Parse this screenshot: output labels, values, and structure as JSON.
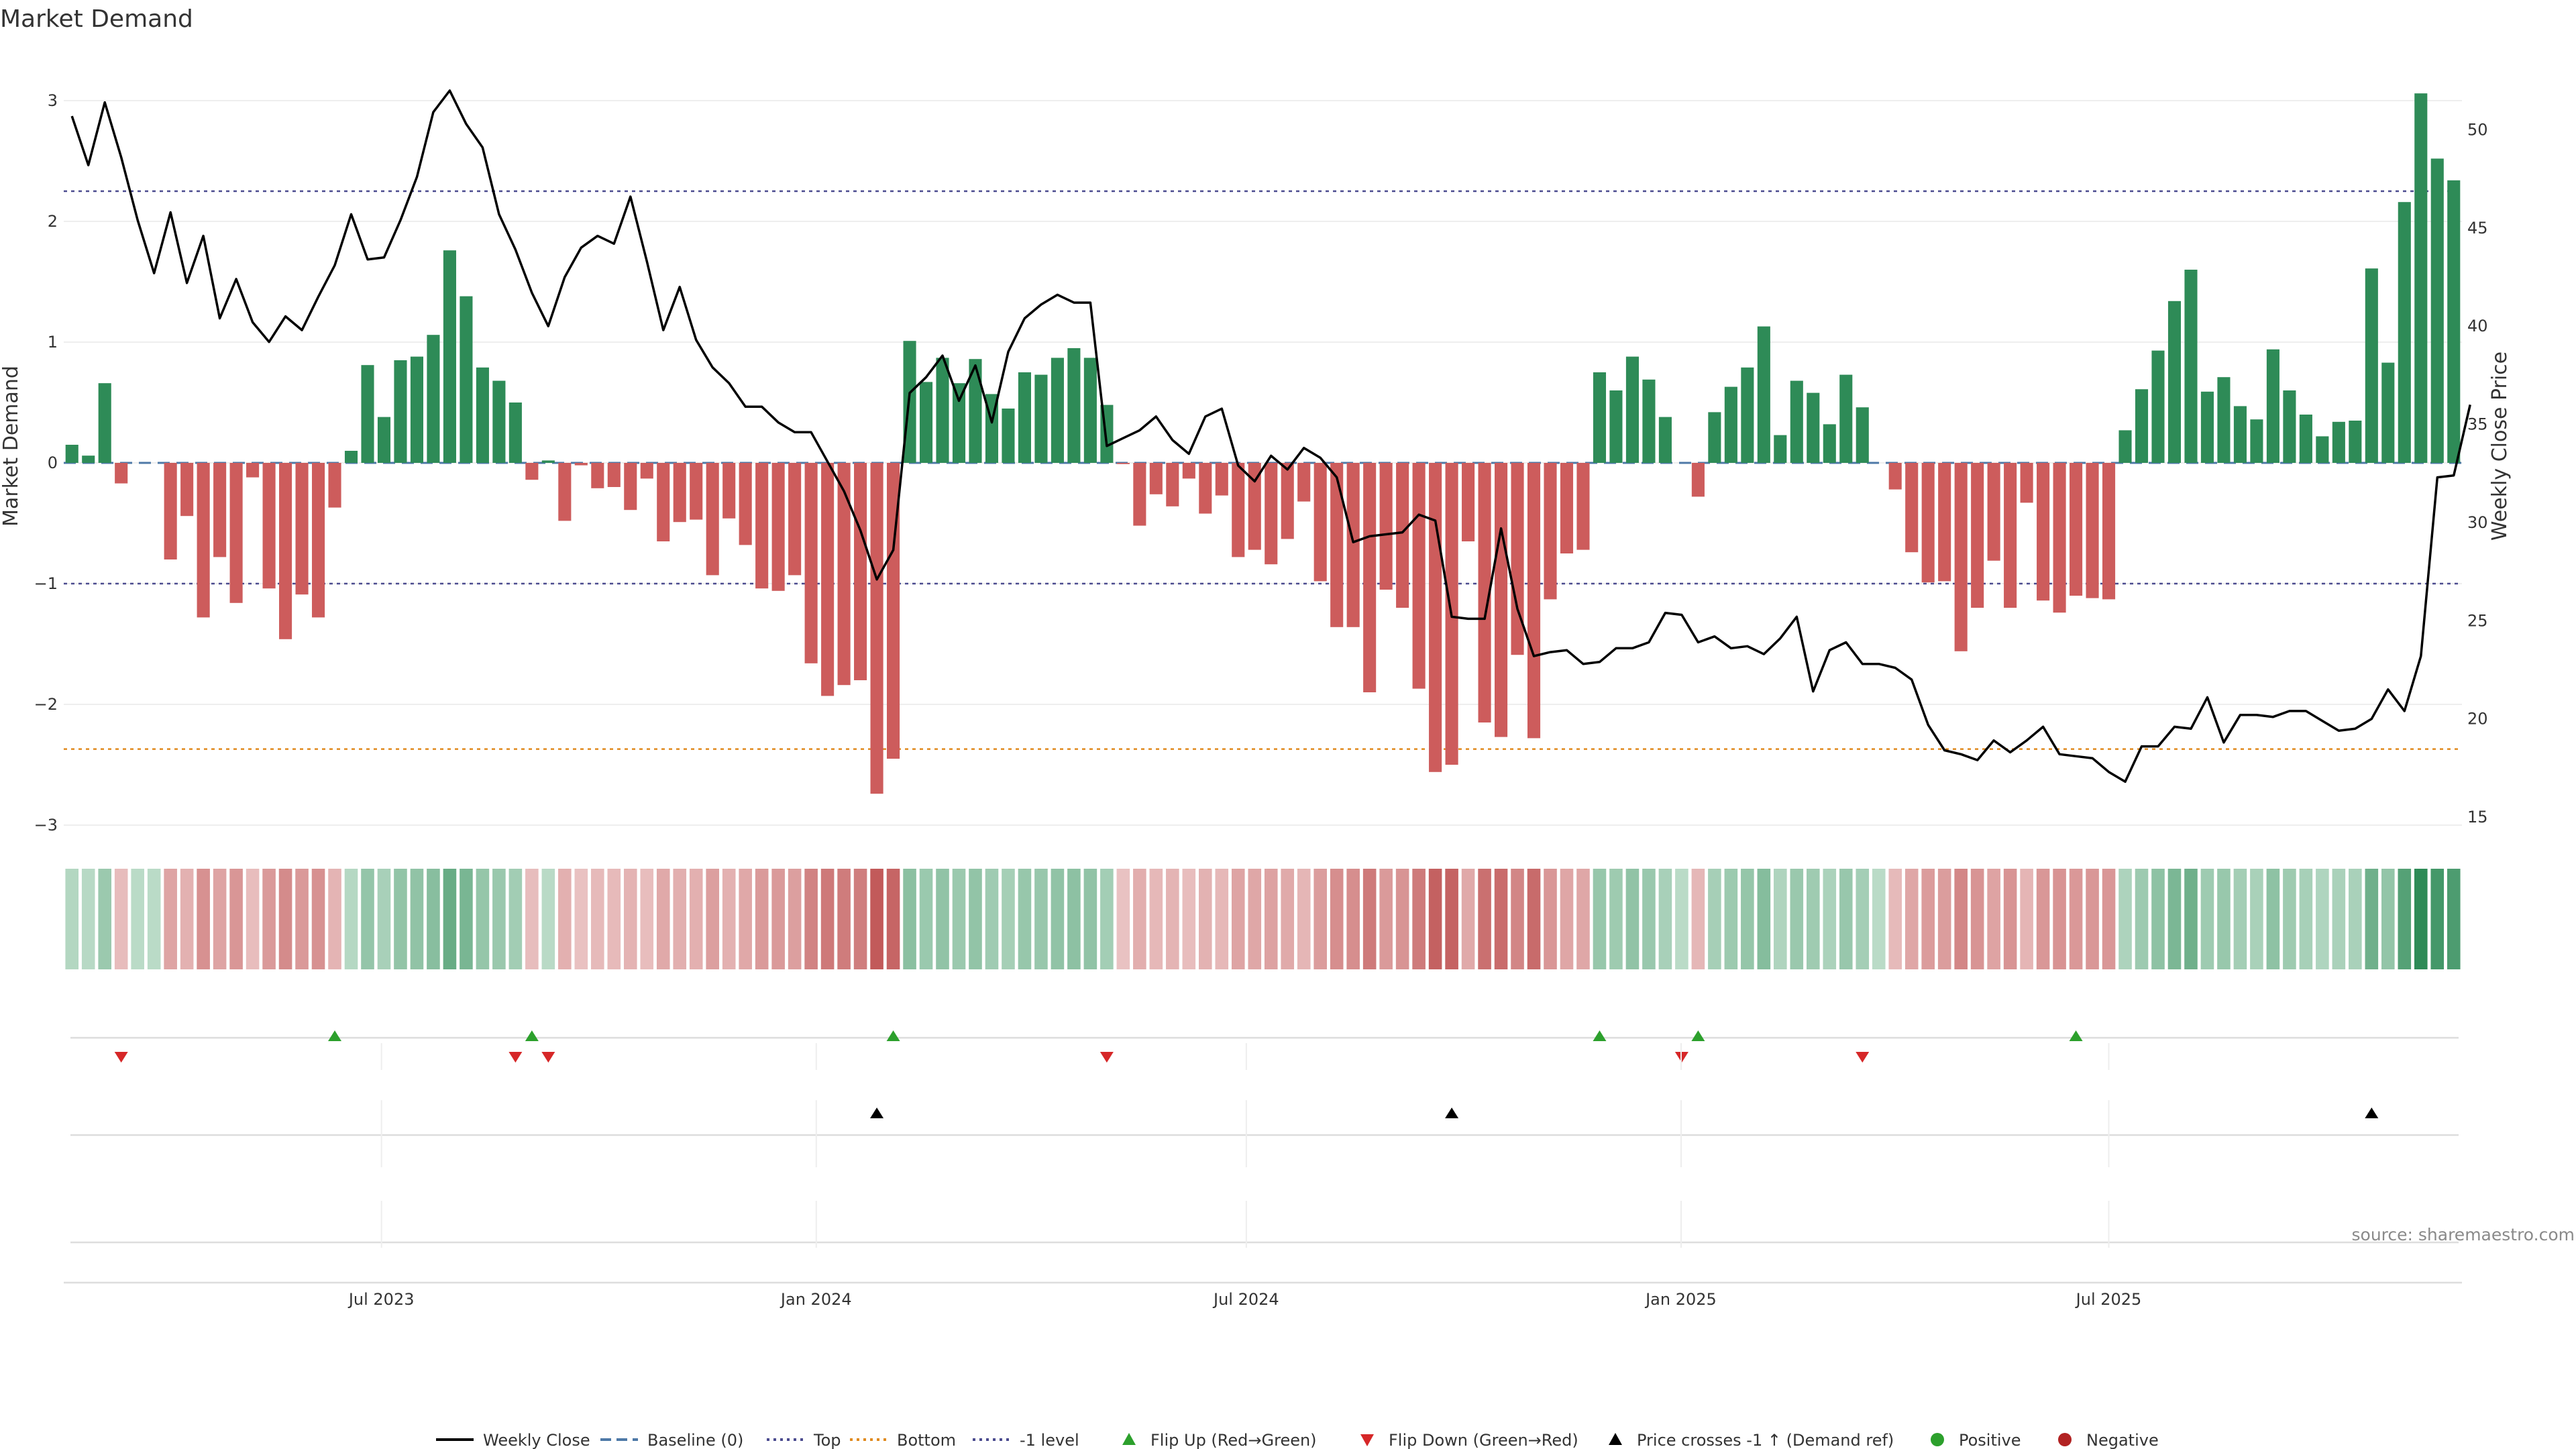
{
  "chart_data": {
    "type": "bar",
    "title": "Market Demand",
    "ylabel": "Market Demand",
    "y2label": "Weekly Close Price",
    "ylim": [
      -3,
      3
    ],
    "y2lim": [
      15,
      52
    ],
    "yticks": [
      "3",
      "2",
      "1",
      "0",
      "−1",
      "−2",
      "−3"
    ],
    "y2ticks": [
      "50",
      "45",
      "40",
      "35",
      "30",
      "25",
      "20",
      "15"
    ],
    "xticks": [
      "Jul 2023",
      "Jan 2024",
      "Jul 2024",
      "Jan 2025",
      "Jul 2025"
    ],
    "x_range": [
      "2023-02-20",
      "2025-11-24"
    ],
    "reference_lines": {
      "top": 2.25,
      "bottom": -2.37,
      "minus_one_level": -1,
      "baseline": 0
    },
    "grid": true,
    "legend_position": "bottom",
    "source": "source: sharemaestro.com",
    "bars": [
      0.15,
      0.06,
      0.66,
      -0.17,
      0,
      0,
      -0.8,
      -0.44,
      -1.28,
      -0.78,
      -1.16,
      -0.12,
      -1.04,
      -1.46,
      -1.09,
      -1.28,
      -0.37,
      0.1,
      0.81,
      0.38,
      0.85,
      0.88,
      1.06,
      1.76,
      1.38,
      0.79,
      0.68,
      0.5,
      -0.14,
      0.02,
      -0.48,
      -0.02,
      -0.21,
      -0.2,
      -0.39,
      -0.13,
      -0.65,
      -0.49,
      -0.47,
      -0.93,
      -0.46,
      -0.68,
      -1.04,
      -1.06,
      -0.93,
      -1.66,
      -1.93,
      -1.84,
      -1.8,
      -2.74,
      -2.45,
      1.01,
      0.67,
      0.87,
      0.66,
      0.86,
      0.57,
      0.45,
      0.75,
      0.73,
      0.87,
      0.95,
      0.87,
      0.48,
      -0.01,
      -0.52,
      -0.26,
      -0.36,
      -0.13,
      -0.42,
      -0.27,
      -0.78,
      -0.72,
      -0.84,
      -0.63,
      -0.32,
      -0.98,
      -1.36,
      -1.36,
      -1.9,
      -1.05,
      -1.2,
      -1.87,
      -2.56,
      -2.5,
      -0.65,
      -2.15,
      -2.27,
      -1.59,
      -2.28,
      -1.13,
      -0.75,
      -0.72,
      0.75,
      0.6,
      0.88,
      0.69,
      0.38,
      0,
      -0.28,
      0.42,
      0.63,
      0.79,
      1.13,
      0.23,
      0.68,
      0.58,
      0.32,
      0.73,
      0.46,
      0,
      -0.22,
      -0.74,
      -0.99,
      -0.98,
      -1.56,
      -1.2,
      -0.81,
      -1.2,
      -0.33,
      -1.14,
      -1.24,
      -1.1,
      -1.12,
      -1.13,
      0.27,
      0.61,
      0.93,
      1.34,
      1.6,
      0.59,
      0.71,
      0.47,
      0.36,
      0.94,
      0.6,
      0.4,
      0.22,
      0.34,
      0.35,
      1.61,
      0.83,
      2.16,
      3.06,
      2.52,
      2.34
    ],
    "series": [
      {
        "name": "Weekly Close",
        "values": [
          50.7,
          48.2,
          51.4,
          48.6,
          45.4,
          42.7,
          45.8,
          42.2,
          44.6,
          40.4,
          42.4,
          40.2,
          39.2,
          40.5,
          39.8,
          41.5,
          43.1,
          45.7,
          43.4,
          43.5,
          45.4,
          47.6,
          50.9,
          52,
          50.3,
          49.1,
          45.7,
          43.9,
          41.7,
          40,
          42.5,
          44,
          44.6,
          44.2,
          46.6,
          43.3,
          39.8,
          42,
          39.3,
          37.9,
          37.1,
          35.9,
          35.9,
          35.1,
          34.6,
          34.6,
          33.1,
          31.6,
          29.6,
          27.1,
          28.6,
          36.6,
          37.4,
          38.5,
          36.2,
          38,
          35.1,
          38.7,
          40.4,
          41.1,
          41.6,
          41.2,
          41.2,
          33.9,
          34.3,
          34.7,
          35.4,
          34.2,
          33.5,
          35.4,
          35.8,
          32.9,
          32.1,
          33.4,
          32.7,
          33.8,
          33.3,
          32.3,
          29,
          29.3,
          29.4,
          29.5,
          30.4,
          30.1,
          25.2,
          25.1,
          25.1,
          29.7,
          25.6,
          23.2,
          23.4,
          23.5,
          22.8,
          22.9,
          23.6,
          23.6,
          23.9,
          25.4,
          25.3,
          23.9,
          24.2,
          23.6,
          23.7,
          23.3,
          24.1,
          25.2,
          21.4,
          23.5,
          23.9,
          22.8,
          22.8,
          22.6,
          22,
          19.7,
          18.4,
          18.2,
          17.9,
          18.9,
          18.3,
          18.9,
          19.6,
          18.2,
          18.1,
          18,
          17.3,
          16.8,
          18.6,
          18.6,
          19.6,
          19.5,
          21.1,
          18.8,
          20.2,
          20.2,
          20.1,
          20.4,
          20.4,
          19.9,
          19.4,
          19.5,
          20,
          21.5,
          20.4,
          23.2,
          32.3,
          32.4,
          36
        ]
      },
      {
        "name": "Baseline (0)",
        "values": [
          0
        ]
      },
      {
        "name": "Top",
        "values": [
          2.25
        ]
      },
      {
        "name": "Bottom",
        "values": [
          -2.37
        ]
      },
      {
        "name": "-1 level",
        "values": [
          -1
        ]
      }
    ],
    "markers": {
      "flip_up_weeks": [
        16,
        28,
        50,
        93,
        99,
        122
      ],
      "flip_down_weeks": [
        3,
        27,
        29,
        63,
        98,
        109
      ],
      "price_cross_weeks": [
        49,
        84,
        140
      ]
    },
    "legend": [
      {
        "label": "Weekly Close",
        "kind": "solid-line",
        "color": "#000000"
      },
      {
        "label": "Baseline (0)",
        "kind": "dashed-line",
        "color": "#4e79a7"
      },
      {
        "label": "Top",
        "kind": "dotted-line",
        "color": "#4b4b8f"
      },
      {
        "label": "Bottom",
        "kind": "dotted-line",
        "color": "#e08a1e"
      },
      {
        "label": "-1 level",
        "kind": "dotted-line",
        "color": "#4b4b8f"
      },
      {
        "label": "Flip Up (Red→Green)",
        "kind": "up-triangle",
        "color": "#2ca02c"
      },
      {
        "label": "Flip Down (Green→Red)",
        "kind": "down-triangle",
        "color": "#d62728"
      },
      {
        "label": "Price crosses -1 ↑ (Demand ref)",
        "kind": "up-triangle",
        "color": "#000000"
      },
      {
        "label": "Positive",
        "kind": "dot",
        "color": "#2ca02c"
      },
      {
        "label": "Negative",
        "kind": "dot",
        "color": "#b22222"
      }
    ],
    "colors": {
      "positive_bar": "#2e8b57",
      "negative_bar": "#cd5c5c",
      "line": "#000000"
    }
  }
}
